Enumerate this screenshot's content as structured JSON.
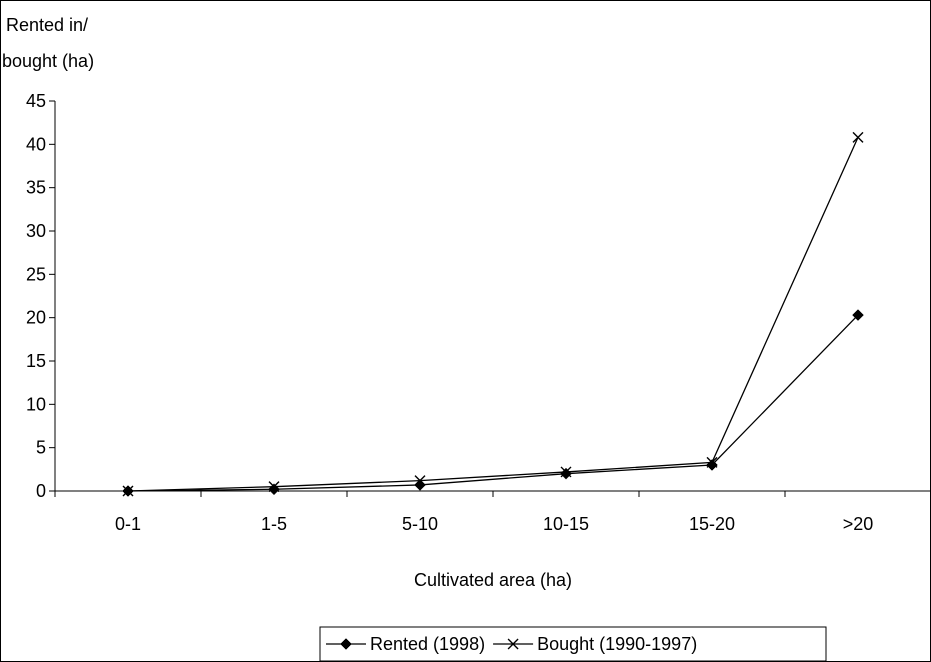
{
  "chart_data": {
    "type": "line",
    "title": "",
    "ylabel_lines": [
      "Rented in/",
      "bought (ha)"
    ],
    "xlabel": "Cultivated area (ha)",
    "categories": [
      "0-1",
      "1-5",
      "5-10",
      "10-15",
      "15-20",
      ">20"
    ],
    "ylim": [
      0,
      45
    ],
    "yticks": [
      0,
      5,
      10,
      15,
      20,
      25,
      30,
      35,
      40,
      45
    ],
    "grid": false,
    "legend_position": "bottom",
    "series": [
      {
        "name": "Rented (1998)",
        "marker": "diamond",
        "values": [
          0,
          0.2,
          0.7,
          2.0,
          3.0,
          20.3
        ]
      },
      {
        "name": "Bought (1990-1997)",
        "marker": "x",
        "values": [
          0,
          0.5,
          1.2,
          2.2,
          3.3,
          40.8
        ]
      }
    ]
  }
}
